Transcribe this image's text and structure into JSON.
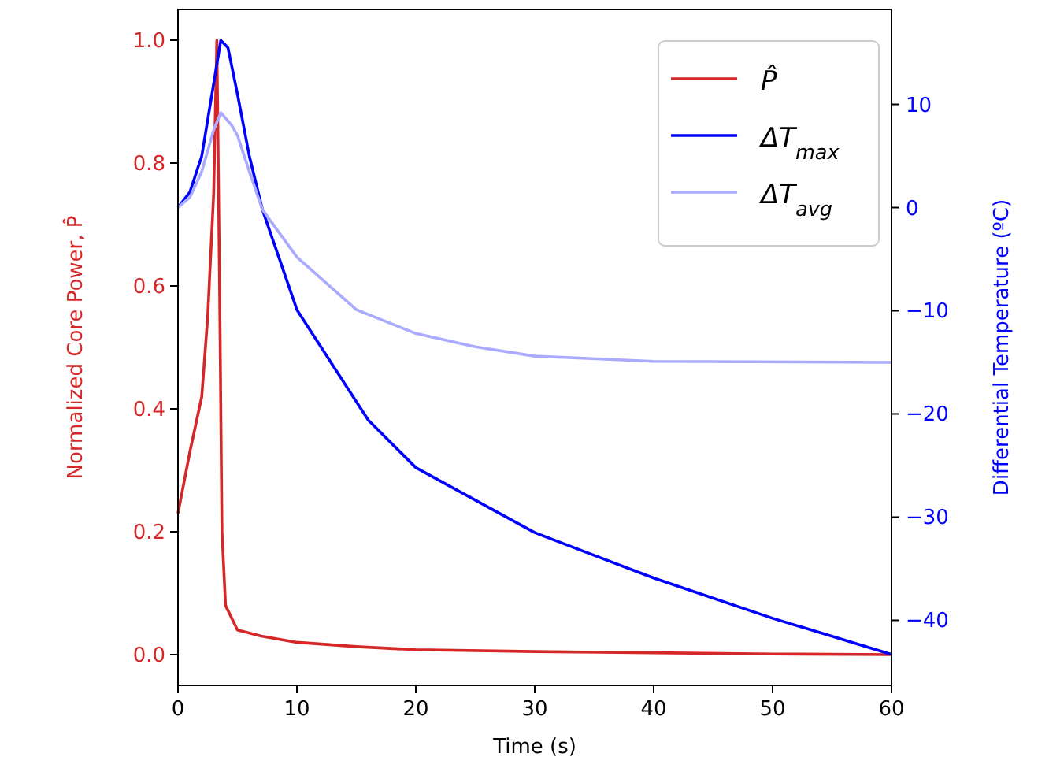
{
  "chart_data": {
    "type": "line",
    "xlabel": "Time (s)",
    "ylabel": "Normalized Core Power, P̂",
    "y2label": "Differential Temperature (ºC)",
    "xlim": [
      0,
      60
    ],
    "xticks": [
      0,
      10,
      20,
      30,
      40,
      50,
      60
    ],
    "ylim": [
      -0.05,
      1.05
    ],
    "yticks": [
      {
        "value": 0,
        "label": "0.0"
      },
      {
        "value": 0.2,
        "label": "0.2"
      },
      {
        "value": 0.4,
        "label": "0.4"
      },
      {
        "value": 0.6,
        "label": "0.6"
      },
      {
        "value": 0.8,
        "label": "0.8"
      },
      {
        "value": 1,
        "label": "1.0"
      }
    ],
    "y2lim": [
      -46.3,
      19.2
    ],
    "y2ticks": [
      {
        "value": -40,
        "label": "−40"
      },
      {
        "value": -30,
        "label": "−30"
      },
      {
        "value": -20,
        "label": "−20"
      },
      {
        "value": -10,
        "label": "−10"
      },
      0,
      10
    ],
    "legend": "top right",
    "grid": false,
    "series": [
      {
        "name": "P̂",
        "color": "#d62728",
        "x": [
          0,
          1,
          2,
          2.5,
          3,
          3.27,
          3.5,
          3.7,
          4,
          5,
          7,
          10,
          15,
          20,
          30,
          40,
          50,
          60
        ],
        "values": [
          0.23,
          0.33,
          0.42,
          0.55,
          0.75,
          1.0,
          0.6,
          0.2,
          0.08,
          0.04,
          0.03,
          0.02,
          0.013,
          0.008,
          0.005,
          0.003,
          0.001,
          0
        ]
      },
      {
        "name": "ΔT$_{max}$",
        "color": "#0000ff",
        "axis": "y2",
        "x": [
          0,
          1,
          2,
          3,
          3.6,
          4.2,
          5,
          6,
          7.1,
          10,
          16,
          20,
          30,
          40,
          50,
          60
        ],
        "values": [
          0,
          1.5,
          5,
          12,
          16.2,
          15.5,
          11,
          5,
          -0.2,
          -9.9,
          -20.6,
          -25.2,
          -31.5,
          -35.9,
          -39.8,
          -43.3
        ]
      },
      {
        "name": "ΔT$_{avg}$",
        "color": "#aaaaff",
        "axis": "y2",
        "x": [
          0,
          1,
          2,
          3,
          3.6,
          4.5,
          5,
          6,
          7.1,
          10,
          15,
          20,
          25,
          30,
          40,
          60
        ],
        "values": [
          0,
          1,
          3.5,
          7.5,
          9.2,
          8,
          7,
          3.5,
          -0.2,
          -4.8,
          -9.9,
          -12.2,
          -13.5,
          -14.4,
          -14.9,
          -15
        ]
      }
    ]
  }
}
